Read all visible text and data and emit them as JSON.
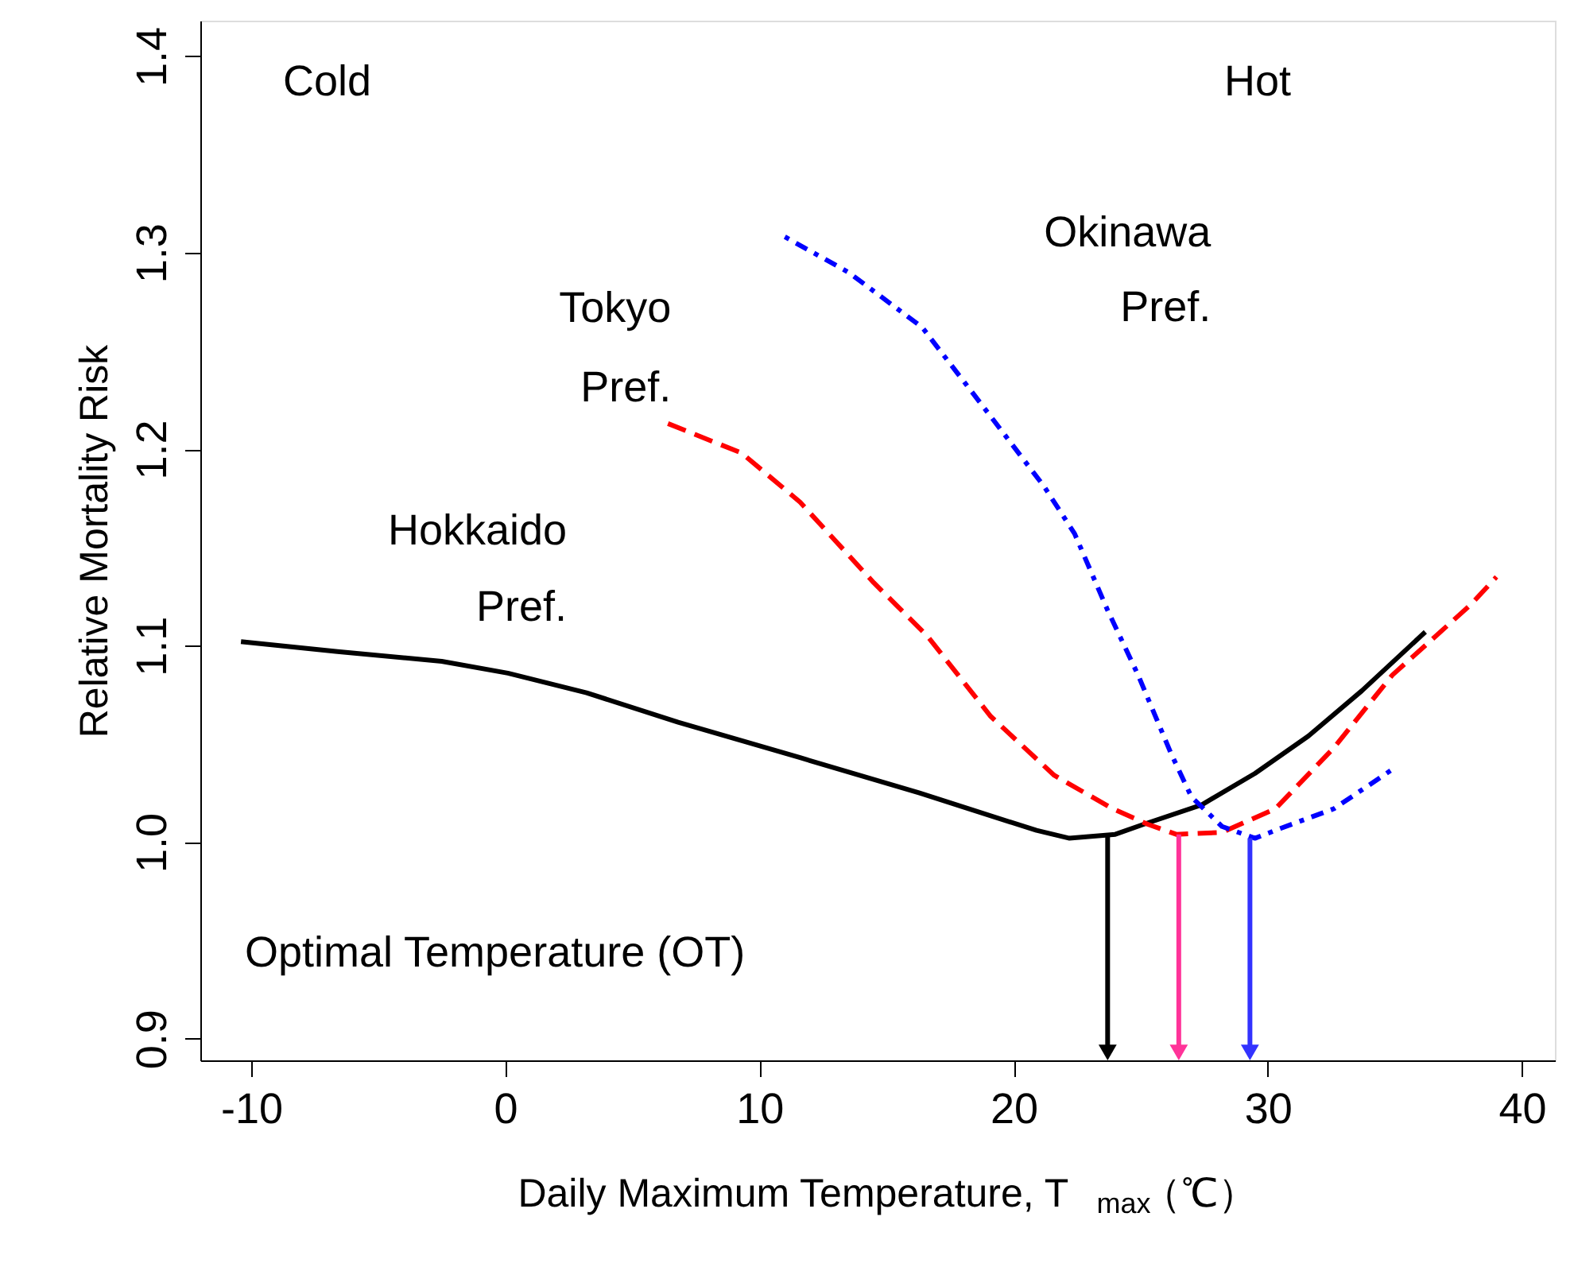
{
  "chart_data": {
    "type": "line",
    "xlabel": "Daily Maximum Temperature, T$_{max}$（℃）",
    "ylabel": "Relative Mortality Risk",
    "xlim": [
      -12,
      41.3
    ],
    "xticks": [
      -10,
      0,
      10,
      20,
      30,
      40
    ],
    "ylim": [
      0.889,
      1.418
    ],
    "yticks": [
      {
        "value": 0.9,
        "label": "0.9"
      },
      {
        "value": 1.0,
        "label": "1.0"
      },
      {
        "value": 1.1,
        "label": "1.1"
      },
      {
        "value": 1.2,
        "label": "1.2"
      },
      {
        "value": 1.3,
        "label": "1.3"
      },
      {
        "value": 1.4,
        "label": "1.4"
      }
    ],
    "grid": false,
    "legend": false,
    "series": [
      {
        "name": "Hokkaido Pref.",
        "color": "#000000",
        "line_style": "solid",
        "x": [
          -10.4,
          -6.6,
          -2.5,
          0.1,
          3.2,
          6.8,
          11.6,
          16.3,
          20.9,
          22.2,
          24.0,
          25.1,
          27.4,
          29.5,
          31.6,
          33.7,
          36.2
        ],
        "values": [
          1.102,
          1.097,
          1.092,
          1.086,
          1.076,
          1.061,
          1.043,
          1.025,
          1.006,
          1.002,
          1.004,
          1.009,
          1.019,
          1.035,
          1.054,
          1.077,
          1.107
        ]
      },
      {
        "name": "Tokyo Pref.",
        "color": "#ff0000",
        "line_style": "dashed",
        "x": [
          6.4,
          9.3,
          11.6,
          14.5,
          16.6,
          19.1,
          21.6,
          23.9,
          25.3,
          26.4,
          28.2,
          30.3,
          32.6,
          34.9,
          38.0,
          39.0
        ],
        "values": [
          1.213,
          1.198,
          1.173,
          1.132,
          1.105,
          1.064,
          1.034,
          1.017,
          1.009,
          1.004,
          1.005,
          1.017,
          1.048,
          1.085,
          1.121,
          1.135
        ]
      },
      {
        "name": "Okinawa Pref.",
        "color": "#0000ff",
        "line_style": "dotted",
        "x": [
          11.0,
          13.5,
          16.4,
          18.9,
          21.2,
          22.4,
          23.7,
          24.9,
          26.2,
          27.0,
          28.2,
          29.5,
          30.5,
          32.6,
          34.9
        ],
        "values": [
          1.308,
          1.29,
          1.262,
          1.22,
          1.181,
          1.157,
          1.118,
          1.085,
          1.045,
          1.023,
          1.008,
          1.002,
          1.007,
          1.017,
          1.037
        ]
      },
      {
        "color": "#000000",
        "line_style": "solid",
        "marker": "triangle",
        "x": [
          23.7,
          23.7
        ],
        "values": [
          1.003,
          0.893
        ]
      },
      {
        "color": "#ff3399",
        "line_style": "solid",
        "marker": "triangle",
        "x": [
          26.5,
          26.5
        ],
        "values": [
          1.004,
          0.893
        ]
      },
      {
        "color": "#3333ff",
        "line_style": "solid",
        "marker": "triangle",
        "x": [
          29.3,
          29.3
        ],
        "values": [
          1.002,
          0.893
        ]
      }
    ],
    "annotations": [
      "Cold",
      "Hot",
      "Optimal  Temperature (OT)"
    ]
  }
}
